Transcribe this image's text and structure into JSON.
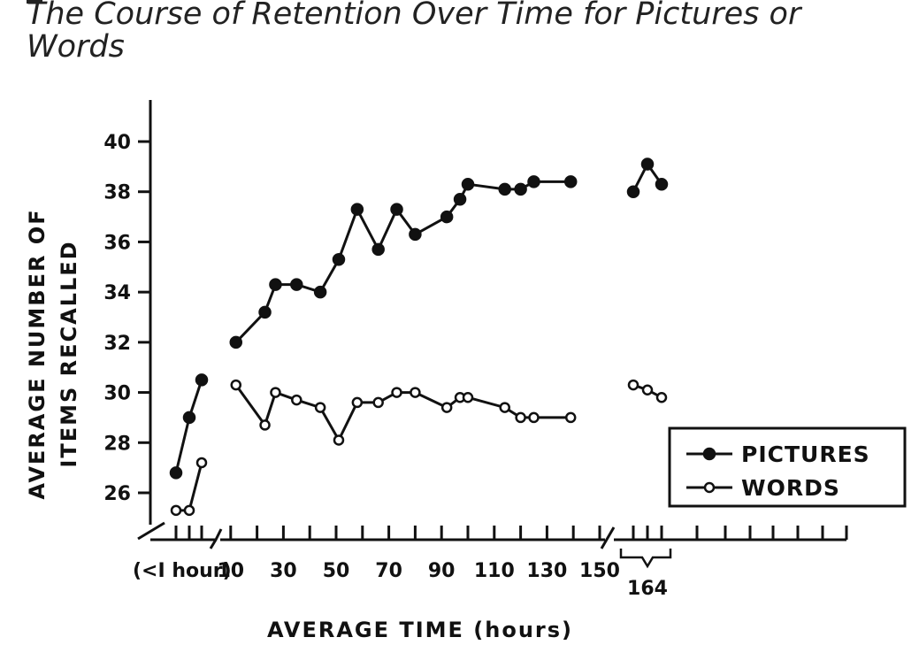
{
  "figure": {
    "title_lines": [
      "The Course of Retention Over Time for Pictures or",
      "Words"
    ]
  },
  "chart_data": {
    "type": "line",
    "xlabel": "AVERAGE TIME (hours)",
    "ylabel_lines": [
      "AVERAGE NUMBER OF",
      "ITEMS RECALLED"
    ],
    "ylim": [
      25,
      41
    ],
    "yticks": [
      26,
      28,
      30,
      32,
      34,
      36,
      38,
      40
    ],
    "xlim": [
      0,
      150
    ],
    "xtick_labels": [
      "(<I hour)",
      "10",
      "30",
      "50",
      "70",
      "90",
      "110",
      "130",
      "150",
      "164"
    ],
    "grid": false,
    "legend_position": "right",
    "segments": [
      "<1 hour",
      "hours",
      "164"
    ],
    "series": [
      {
        "name": "PICTURES",
        "marker": "filled",
        "under_hour": [
          26.8,
          29.0,
          30.5
        ],
        "hours": {
          "x": [
            12,
            23,
            27,
            35,
            44,
            51,
            58,
            66,
            73,
            80,
            92,
            97,
            100,
            114,
            120,
            125,
            139
          ],
          "values": [
            32.0,
            33.2,
            34.3,
            34.3,
            34.0,
            35.3,
            37.3,
            35.7,
            37.3,
            36.3,
            37.0,
            37.7,
            38.3,
            38.1,
            38.1,
            38.4,
            38.4
          ]
        },
        "at_164": [
          38.0,
          39.1,
          38.3
        ]
      },
      {
        "name": "WORDS",
        "marker": "open",
        "under_hour": [
          25.3,
          25.3,
          27.2
        ],
        "hours": {
          "x": [
            12,
            23,
            27,
            35,
            44,
            51,
            58,
            66,
            73,
            80,
            92,
            97,
            100,
            114,
            120,
            125,
            139
          ],
          "values": [
            30.3,
            28.7,
            30.0,
            29.7,
            29.4,
            28.1,
            29.6,
            29.6,
            30.0,
            30.0,
            29.4,
            29.8,
            29.8,
            29.4,
            29.0,
            29.0,
            29.0
          ]
        },
        "at_164": [
          30.3,
          30.1,
          29.8
        ]
      }
    ]
  }
}
